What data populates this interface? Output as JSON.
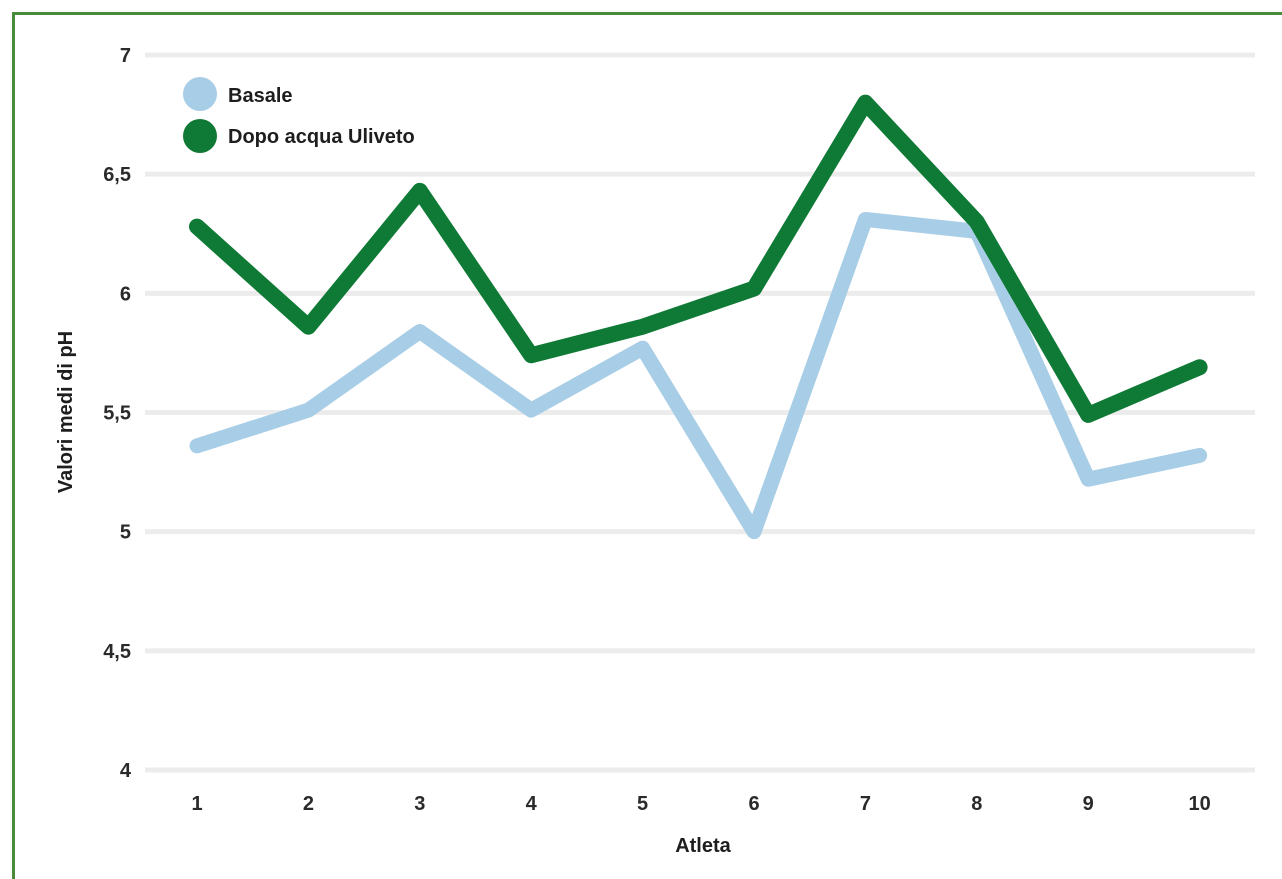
{
  "chart_data": {
    "type": "line",
    "title": "",
    "xlabel": "Atleta",
    "ylabel": "Valori medi di pH",
    "categories": [
      "1",
      "2",
      "3",
      "4",
      "5",
      "6",
      "7",
      "8",
      "9",
      "10"
    ],
    "y_ticks": [
      "4",
      "4,5",
      "5",
      "5,5",
      "6",
      "6,5",
      "7"
    ],
    "y_tick_values": [
      4,
      4.5,
      5,
      5.5,
      6,
      6.5,
      7
    ],
    "ylim": [
      4,
      7
    ],
    "grid": "horizontal",
    "legend_position": "top-left",
    "series": [
      {
        "name": "Basale",
        "color": "#a8cde6",
        "values": [
          5.36,
          5.51,
          5.84,
          5.51,
          5.77,
          5.0,
          6.31,
          6.26,
          5.22,
          5.32
        ]
      },
      {
        "name": "Dopo acqua Uliveto",
        "color": "#0f7a35",
        "values": [
          6.28,
          5.86,
          6.43,
          5.74,
          5.86,
          6.02,
          6.8,
          6.3,
          5.49,
          5.69
        ]
      }
    ]
  }
}
